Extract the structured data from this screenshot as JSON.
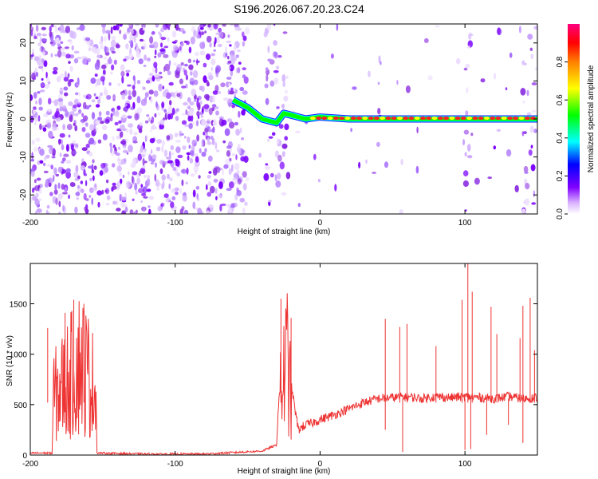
{
  "title": "S196.2026.067.20.23.C24",
  "chart_data": [
    {
      "type": "heatmap",
      "xlabel": "Height of straight line (km)",
      "ylabel": "Frequency (Hz)",
      "xlim": [
        -200,
        150
      ],
      "ylim": [
        -25,
        25
      ],
      "xticks": [
        -200,
        -100,
        0,
        100
      ],
      "yticks": [
        -20,
        -10,
        0,
        10,
        20
      ],
      "colorbar": {
        "label": "Normalized spectral amplitude",
        "range": [
          0,
          1
        ],
        "ticks": [
          0.0,
          0.2,
          0.4,
          0.6,
          0.8
        ],
        "tick_labels": [
          "0.0",
          "0.2",
          "0.4",
          "0.6",
          "0.8"
        ],
        "colormap": [
          "#ffffff",
          "#8000ff",
          "#0000ff",
          "#00ffff",
          "#00ff00",
          "#ffff00",
          "#ff8000",
          "#ff0000",
          "#ff0080"
        ]
      },
      "signal_line": {
        "description_points_km_hz": [
          [
            -60,
            5
          ],
          [
            -50,
            3
          ],
          [
            -40,
            0
          ],
          [
            -30,
            -1
          ],
          [
            -25,
            1.5
          ],
          [
            -20,
            1
          ],
          [
            -10,
            0
          ],
          [
            0,
            0.5
          ],
          [
            20,
            0
          ],
          [
            60,
            0
          ],
          [
            100,
            0
          ],
          [
            150,
            0
          ]
        ],
        "peak_amplitude": 0.95
      },
      "noise_regions_km": [
        [
          -200,
          -50
        ],
        [
          -38,
          -22
        ],
        [
          40,
          42
        ],
        [
          100,
          105
        ],
        [
          140,
          150
        ]
      ]
    },
    {
      "type": "line",
      "xlabel": "Height of straight line (km)",
      "ylabel": "SNR (10 * v/v)",
      "xlim": [
        -200,
        150
      ],
      "ylim": [
        0,
        1900
      ],
      "xticks": [
        -200,
        -100,
        0,
        100
      ],
      "yticks": [
        0,
        500,
        1000,
        1500
      ],
      "color": "#ee3333",
      "series": [
        {
          "x": [
            -200,
            -185,
            -184,
            -170,
            -165,
            -155,
            -154,
            -120,
            -80,
            -40,
            -30,
            -27,
            -22,
            -20,
            -15,
            -10,
            -5,
            0,
            10,
            20,
            30,
            40,
            50,
            60,
            70,
            80,
            90,
            100,
            110,
            120,
            130,
            140,
            150
          ],
          "y": [
            20,
            20,
            900,
            1300,
            1500,
            1000,
            20,
            10,
            10,
            40,
            100,
            1000,
            1600,
            700,
            250,
            300,
            320,
            350,
            400,
            460,
            520,
            560,
            570,
            580,
            560,
            580,
            570,
            580,
            570,
            560,
            580,
            560,
            570
          ],
          "spikes": [
            [
              -188,
              1260
            ],
            [
              -176,
              1410
            ],
            [
              -170,
              1540
            ],
            [
              -163,
              1500
            ],
            [
              -27,
              1550
            ],
            [
              -20,
              1360
            ],
            [
              45,
              1350
            ],
            [
              55,
              1270
            ],
            [
              60,
              1300
            ],
            [
              80,
              1080
            ],
            [
              98,
              1540
            ],
            [
              102,
              1900
            ],
            [
              105,
              1620
            ],
            [
              118,
              1470
            ],
            [
              122,
              1200
            ],
            [
              138,
              1160
            ],
            [
              140,
              1480
            ],
            [
              145,
              1560
            ],
            [
              148,
              1040
            ]
          ],
          "drops": [
            [
              45,
              250
            ],
            [
              57,
              30
            ],
            [
              100,
              50
            ],
            [
              104,
              60
            ],
            [
              115,
              200
            ],
            [
              130,
              300
            ],
            [
              140,
              120
            ]
          ]
        }
      ]
    }
  ]
}
